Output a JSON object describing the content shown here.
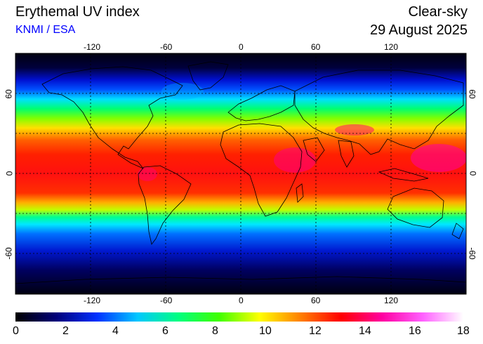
{
  "header": {
    "title": "Erythemal UV index",
    "credit": "KNMI / ESA",
    "mode": "Clear-sky",
    "date": "29 August 2025"
  },
  "map": {
    "projection": "equirectangular",
    "lon_range": [
      -180,
      180
    ],
    "lat_range": [
      -90,
      90
    ],
    "lon_ticks": [
      "-120",
      "-60",
      "0",
      "60",
      "120"
    ],
    "lat_ticks": [
      "60",
      "0",
      "-60"
    ],
    "gridlines": true,
    "gridline_lats": [
      -30,
      0,
      30
    ],
    "gridline_lons": [
      -120,
      -60,
      0,
      60,
      120
    ]
  },
  "colorbar": {
    "min": 0,
    "max": 18,
    "labels": [
      "0",
      "2",
      "4",
      "6",
      "8",
      "10",
      "12",
      "14",
      "16",
      "18"
    ],
    "colors": [
      "#000000",
      "#00007a",
      "#0030ff",
      "#00c8ff",
      "#00ff80",
      "#40ff00",
      "#ffff00",
      "#ff8000",
      "#ff0000",
      "#ff00a0",
      "#ff60ff",
      "#ffffff"
    ]
  }
}
